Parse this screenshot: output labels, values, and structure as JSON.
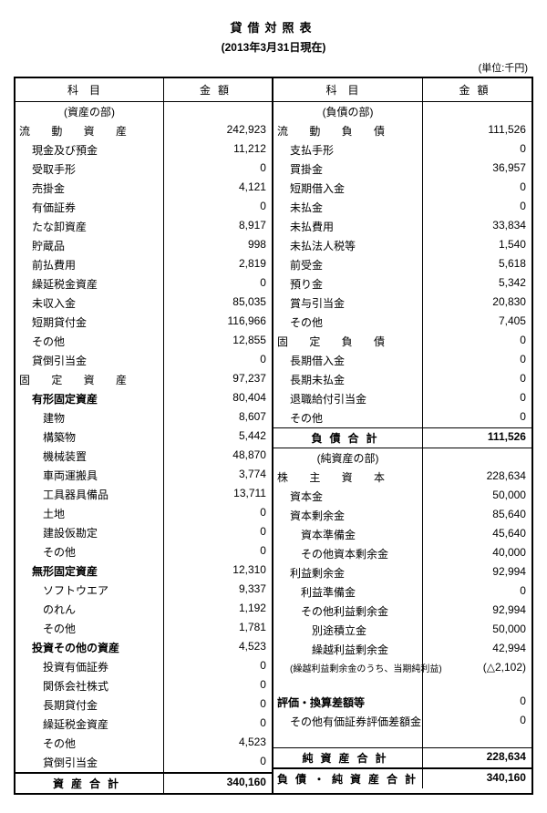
{
  "meta": {
    "title": "貸借対照表",
    "asof": "(2013年3月31日現在)",
    "unit": "(単位:千円)",
    "hdr_name": "科目",
    "hdr_amt": "金額"
  },
  "left": [
    {
      "mode": "section",
      "label": "(資産の部)"
    },
    {
      "name": "流 動 資 産",
      "amt": "242,923",
      "cls": "spaced-wide"
    },
    {
      "name": "現金及び預金",
      "amt": "11,212",
      "indent": 1
    },
    {
      "name": "受取手形",
      "amt": "0",
      "indent": 1
    },
    {
      "name": "売掛金",
      "amt": "4,121",
      "indent": 1
    },
    {
      "name": "有価証券",
      "amt": "0",
      "indent": 1
    },
    {
      "name": "たな卸資産",
      "amt": "8,917",
      "indent": 1
    },
    {
      "name": "貯蔵品",
      "amt": "998",
      "indent": 1
    },
    {
      "name": "前払費用",
      "amt": "2,819",
      "indent": 1
    },
    {
      "name": "繰延税金資産",
      "amt": "0",
      "indent": 1
    },
    {
      "name": "未収入金",
      "amt": "85,035",
      "indent": 1
    },
    {
      "name": "短期貸付金",
      "amt": "116,966",
      "indent": 1
    },
    {
      "name": "その他",
      "amt": "12,855",
      "indent": 1
    },
    {
      "name": "貸倒引当金",
      "amt": "0",
      "indent": 1
    },
    {
      "name": "固 定 資 産",
      "amt": "97,237",
      "cls": "spaced-wide"
    },
    {
      "name": "有形固定資産",
      "amt": "80,404",
      "indent": 1,
      "cls": "bold"
    },
    {
      "name": "建物",
      "amt": "8,607",
      "indent": 2
    },
    {
      "name": "構築物",
      "amt": "5,442",
      "indent": 2
    },
    {
      "name": "機械装置",
      "amt": "48,870",
      "indent": 2
    },
    {
      "name": "車両運搬具",
      "amt": "3,774",
      "indent": 2
    },
    {
      "name": "工具器具備品",
      "amt": "13,711",
      "indent": 2
    },
    {
      "name": "土地",
      "amt": "0",
      "indent": 2
    },
    {
      "name": "建設仮勘定",
      "amt": "0",
      "indent": 2
    },
    {
      "name": "その他",
      "amt": "0",
      "indent": 2
    },
    {
      "name": "無形固定資産",
      "amt": "12,310",
      "indent": 1,
      "cls": "bold"
    },
    {
      "name": "ソフトウエア",
      "amt": "9,337",
      "indent": 2
    },
    {
      "name": "のれん",
      "amt": "1,192",
      "indent": 2
    },
    {
      "name": "その他",
      "amt": "1,781",
      "indent": 2
    },
    {
      "name": "投資その他の資産",
      "amt": "4,523",
      "indent": 1,
      "cls": "bold"
    },
    {
      "name": "投資有価証券",
      "amt": "0",
      "indent": 2
    },
    {
      "name": "関係会社株式",
      "amt": "0",
      "indent": 2
    },
    {
      "name": "長期貸付金",
      "amt": "0",
      "indent": 2
    },
    {
      "name": "繰延税金資産",
      "amt": "0",
      "indent": 2
    },
    {
      "name": "その他",
      "amt": "4,523",
      "indent": 2
    },
    {
      "name": "貸倒引当金",
      "amt": "0",
      "indent": 2
    },
    {
      "mode": "total",
      "name": "資産合計",
      "amt": "340,160",
      "topline": "heavy"
    }
  ],
  "right": [
    {
      "mode": "section",
      "label": "(負債の部)"
    },
    {
      "name": "流 動 負 債",
      "amt": "111,526",
      "cls": "spaced-wide"
    },
    {
      "name": "支払手形",
      "amt": "0",
      "indent": 1
    },
    {
      "name": "買掛金",
      "amt": "36,957",
      "indent": 1
    },
    {
      "name": "短期借入金",
      "amt": "0",
      "indent": 1
    },
    {
      "name": "未払金",
      "amt": "0",
      "indent": 1
    },
    {
      "name": "未払費用",
      "amt": "33,834",
      "indent": 1
    },
    {
      "name": "未払法人税等",
      "amt": "1,540",
      "indent": 1
    },
    {
      "name": "前受金",
      "amt": "5,618",
      "indent": 1
    },
    {
      "name": "預り金",
      "amt": "5,342",
      "indent": 1
    },
    {
      "name": "賞与引当金",
      "amt": "20,830",
      "indent": 1
    },
    {
      "name": "その他",
      "amt": "7,405",
      "indent": 1
    },
    {
      "name": "固 定 負 債",
      "amt": "0",
      "cls": "spaced-wide"
    },
    {
      "name": "長期借入金",
      "amt": "0",
      "indent": 1
    },
    {
      "name": "長期未払金",
      "amt": "0",
      "indent": 1
    },
    {
      "name": "退職給付引当金",
      "amt": "0",
      "indent": 1
    },
    {
      "name": "その他",
      "amt": "0",
      "indent": 1
    },
    {
      "mode": "total",
      "name": "負債合計",
      "amt": "111,526",
      "topline": "thin",
      "spacing": "med"
    },
    {
      "mode": "section",
      "label": "(純資産の部)",
      "topline": "thin"
    },
    {
      "name": "株 主 資 本",
      "amt": "228,634",
      "cls": "spaced-wide"
    },
    {
      "name": "資本金",
      "amt": "50,000",
      "indent": 1
    },
    {
      "name": "資本剰余金",
      "amt": "85,640",
      "indent": 1
    },
    {
      "name": "資本準備金",
      "amt": "45,640",
      "indent": 2
    },
    {
      "name": "その他資本剰余金",
      "amt": "40,000",
      "indent": 2
    },
    {
      "name": "利益剰余金",
      "amt": "92,994",
      "indent": 1
    },
    {
      "name": "利益準備金",
      "amt": "0",
      "indent": 2
    },
    {
      "name": "その他利益剰余金",
      "amt": "92,994",
      "indent": 2
    },
    {
      "name": "別途積立金",
      "amt": "50,000",
      "indent": 3
    },
    {
      "name": "繰越利益剰余金",
      "amt": "42,994",
      "indent": 3
    },
    {
      "name": "(繰越利益剰余金のうち、当期純利益)",
      "amt": "(△2,102)",
      "indent": 1,
      "cls": "small-note"
    },
    {
      "mode": "blank"
    },
    {
      "name": "評価・換算差額等",
      "amt": "0",
      "cls": "bold"
    },
    {
      "name": "その他有価証券評価差額金",
      "amt": "0",
      "indent": 1
    },
    {
      "mode": "blank"
    },
    {
      "mode": "total",
      "name": "純資産合計",
      "amt": "228,634",
      "topline": "thin",
      "spacing": "med"
    },
    {
      "mode": "total",
      "name": "負債・純資産合計",
      "amt": "340,160",
      "topline": "heavy"
    }
  ]
}
